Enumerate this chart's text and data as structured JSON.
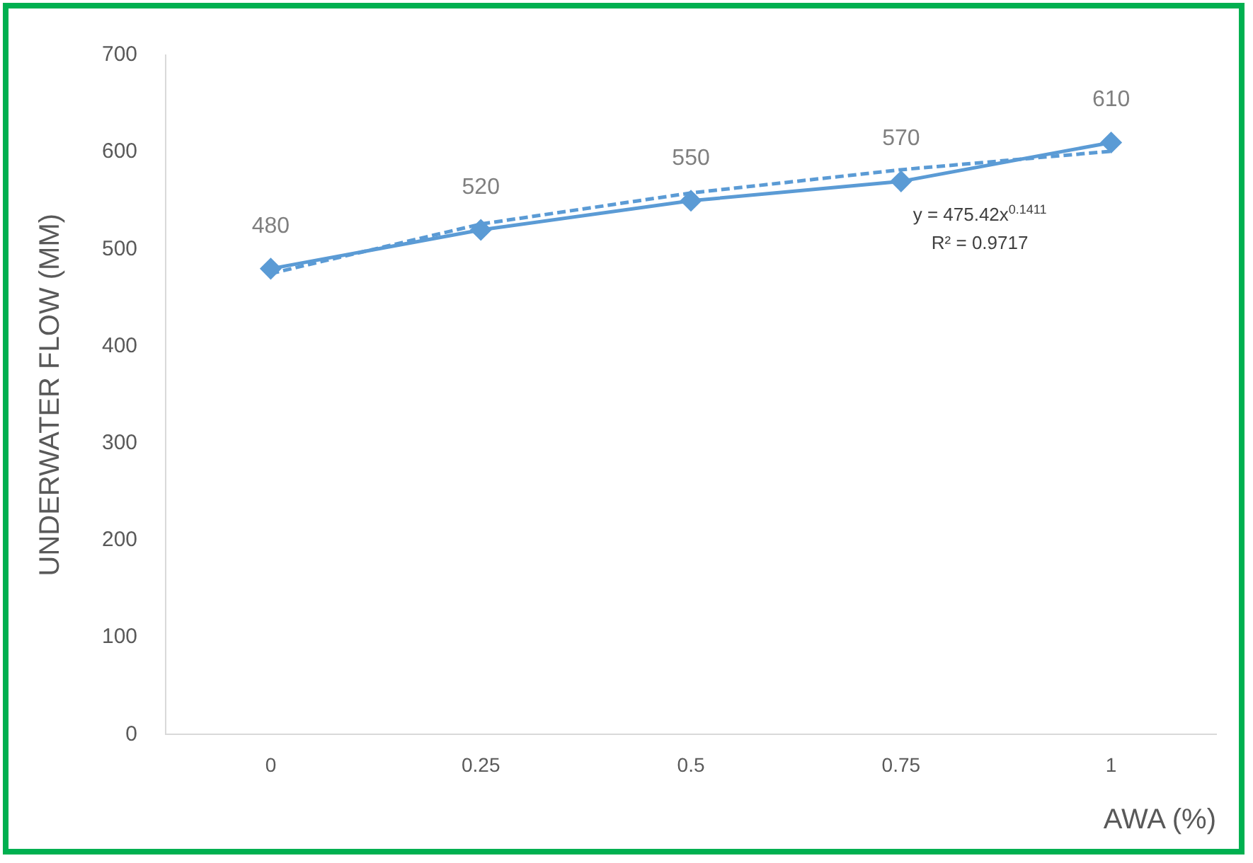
{
  "chart_data": {
    "type": "line",
    "xlabel": "AWA (%)",
    "ylabel": "UNDERWATER FLOW (MM)",
    "categories": [
      "0",
      "0.25",
      "0.5",
      "0.75",
      "1"
    ],
    "series": [
      {
        "color": "#5b9bd5",
        "values": [
          480,
          520,
          550,
          570,
          610
        ],
        "marker": "diamond",
        "line_style": "solid",
        "data_labels": true
      },
      {
        "color": "#5b9bd5",
        "values": [
          475,
          526,
          558,
          582,
          601
        ],
        "marker": "none",
        "line_style": "dashed"
      }
    ],
    "ylim": [
      0,
      700
    ],
    "yticks": [
      0,
      100,
      200,
      300,
      400,
      500,
      600,
      700
    ],
    "grid": false,
    "legend": false,
    "annotations": [
      "y = 475.42x$^{0.1411}$",
      "R² = 0.9717"
    ]
  }
}
